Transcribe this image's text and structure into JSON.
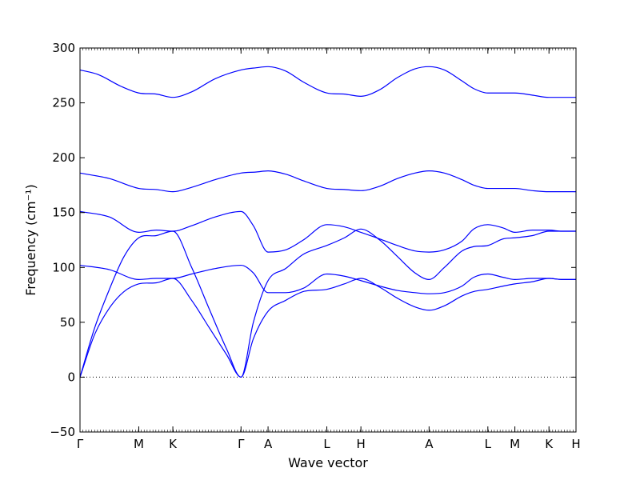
{
  "chart_data": {
    "type": "line",
    "xlabel": "Wave vector",
    "ylabel": "Frequency (cm⁻¹)",
    "ylim": [
      -50,
      300
    ],
    "yticks": [
      -50,
      0,
      50,
      100,
      150,
      200,
      250,
      300
    ],
    "grid": false,
    "line_color": "#0000ff",
    "zero_line": {
      "y": 0,
      "style": "dotted"
    },
    "high_symmetry_points": [
      {
        "label": "Γ",
        "x": 0
      },
      {
        "label": "M",
        "x": 1.0
      },
      {
        "label": "K",
        "x": 1.58
      },
      {
        "label": "Γ",
        "x": 2.74
      },
      {
        "label": "A",
        "x": 3.2
      },
      {
        "label": "L",
        "x": 4.2
      },
      {
        "label": "H",
        "x": 4.78
      },
      {
        "label": "A",
        "x": 5.94
      },
      {
        "label": "L",
        "x": 6.94
      },
      {
        "label": "M",
        "x": 7.4
      },
      {
        "label": "K",
        "x": 7.98
      },
      {
        "label": "H",
        "x": 8.44
      }
    ],
    "series": [
      {
        "points": [
          [
            0,
            0
          ],
          [
            0.25,
            39
          ],
          [
            0.5,
            63
          ],
          [
            0.75,
            78
          ],
          [
            1.0,
            85
          ],
          [
            1.3,
            86
          ],
          [
            1.58,
            90
          ],
          [
            1.9,
            70
          ],
          [
            2.2,
            45
          ],
          [
            2.5,
            20
          ],
          [
            2.74,
            0
          ],
          [
            2.95,
            35
          ],
          [
            3.2,
            60
          ],
          [
            3.5,
            70
          ],
          [
            3.8,
            78
          ],
          [
            4.2,
            80
          ],
          [
            4.5,
            85
          ],
          [
            4.78,
            90
          ],
          [
            5.1,
            82
          ],
          [
            5.4,
            72
          ],
          [
            5.7,
            64
          ],
          [
            5.94,
            61
          ],
          [
            6.2,
            65
          ],
          [
            6.5,
            74
          ],
          [
            6.7,
            78
          ],
          [
            6.94,
            80
          ],
          [
            7.2,
            83
          ],
          [
            7.4,
            85
          ],
          [
            7.7,
            87
          ],
          [
            7.98,
            90
          ],
          [
            8.2,
            89
          ],
          [
            8.44,
            89
          ]
        ]
      },
      {
        "points": [
          [
            0,
            0
          ],
          [
            0.25,
            45
          ],
          [
            0.5,
            80
          ],
          [
            0.75,
            110
          ],
          [
            1.0,
            127
          ],
          [
            1.3,
            129
          ],
          [
            1.58,
            133
          ],
          [
            1.9,
            100
          ],
          [
            2.2,
            62
          ],
          [
            2.5,
            25
          ],
          [
            2.74,
            0
          ],
          [
            2.95,
            50
          ],
          [
            3.2,
            88
          ],
          [
            3.5,
            99
          ],
          [
            3.8,
            112
          ],
          [
            4.2,
            120
          ],
          [
            4.5,
            127
          ],
          [
            4.78,
            135
          ],
          [
            5.1,
            125
          ],
          [
            5.4,
            110
          ],
          [
            5.7,
            95
          ],
          [
            5.94,
            89
          ],
          [
            6.2,
            100
          ],
          [
            6.5,
            115
          ],
          [
            6.7,
            119
          ],
          [
            6.94,
            120
          ],
          [
            7.2,
            126
          ],
          [
            7.4,
            127
          ],
          [
            7.7,
            129
          ],
          [
            7.98,
            133
          ],
          [
            8.2,
            133
          ],
          [
            8.44,
            133
          ]
        ]
      },
      {
        "points": [
          [
            0,
            102
          ],
          [
            0.5,
            98
          ],
          [
            1.0,
            89
          ],
          [
            1.3,
            90
          ],
          [
            1.58,
            90
          ],
          [
            1.9,
            94
          ],
          [
            2.3,
            99
          ],
          [
            2.74,
            102
          ],
          [
            2.95,
            95
          ],
          [
            3.2,
            77
          ],
          [
            3.5,
            77
          ],
          [
            3.8,
            81
          ],
          [
            4.2,
            94
          ],
          [
            4.5,
            92
          ],
          [
            4.78,
            88
          ],
          [
            5.1,
            83
          ],
          [
            5.4,
            79
          ],
          [
            5.7,
            77
          ],
          [
            5.94,
            76
          ],
          [
            6.2,
            77
          ],
          [
            6.5,
            83
          ],
          [
            6.7,
            91
          ],
          [
            6.94,
            94
          ],
          [
            7.2,
            91
          ],
          [
            7.4,
            89
          ],
          [
            7.7,
            90
          ],
          [
            7.98,
            90
          ],
          [
            8.2,
            89
          ],
          [
            8.44,
            89
          ]
        ]
      },
      {
        "points": [
          [
            0,
            151
          ],
          [
            0.5,
            146
          ],
          [
            1.0,
            132
          ],
          [
            1.3,
            134
          ],
          [
            1.58,
            133
          ],
          [
            1.9,
            138
          ],
          [
            2.3,
            146
          ],
          [
            2.74,
            151
          ],
          [
            2.95,
            138
          ],
          [
            3.2,
            114
          ],
          [
            3.5,
            116
          ],
          [
            3.8,
            125
          ],
          [
            4.2,
            139
          ],
          [
            4.5,
            137
          ],
          [
            4.78,
            132
          ],
          [
            5.1,
            126
          ],
          [
            5.4,
            120
          ],
          [
            5.7,
            115
          ],
          [
            5.94,
            114
          ],
          [
            6.2,
            116
          ],
          [
            6.5,
            124
          ],
          [
            6.7,
            135
          ],
          [
            6.94,
            139
          ],
          [
            7.2,
            136
          ],
          [
            7.4,
            132
          ],
          [
            7.7,
            134
          ],
          [
            7.98,
            134
          ],
          [
            8.2,
            133
          ],
          [
            8.44,
            133
          ]
        ]
      },
      {
        "points": [
          [
            0,
            186
          ],
          [
            0.5,
            181
          ],
          [
            1.0,
            172
          ],
          [
            1.3,
            171
          ],
          [
            1.58,
            169
          ],
          [
            1.9,
            173
          ],
          [
            2.3,
            180
          ],
          [
            2.74,
            186
          ],
          [
            3.0,
            187
          ],
          [
            3.2,
            188
          ],
          [
            3.5,
            185
          ],
          [
            3.8,
            179
          ],
          [
            4.2,
            172
          ],
          [
            4.5,
            171
          ],
          [
            4.78,
            170
          ],
          [
            5.1,
            174
          ],
          [
            5.4,
            181
          ],
          [
            5.7,
            186
          ],
          [
            5.94,
            188
          ],
          [
            6.2,
            186
          ],
          [
            6.5,
            180
          ],
          [
            6.7,
            175
          ],
          [
            6.94,
            172
          ],
          [
            7.2,
            172
          ],
          [
            7.4,
            172
          ],
          [
            7.7,
            170
          ],
          [
            7.98,
            169
          ],
          [
            8.2,
            169
          ],
          [
            8.44,
            169
          ]
        ]
      },
      {
        "points": [
          [
            0,
            280
          ],
          [
            0.3,
            276
          ],
          [
            0.7,
            265
          ],
          [
            1.0,
            259
          ],
          [
            1.3,
            258
          ],
          [
            1.58,
            255
          ],
          [
            1.9,
            260
          ],
          [
            2.3,
            272
          ],
          [
            2.74,
            280
          ],
          [
            3.0,
            282
          ],
          [
            3.2,
            283
          ],
          [
            3.5,
            279
          ],
          [
            3.8,
            269
          ],
          [
            4.2,
            259
          ],
          [
            4.5,
            258
          ],
          [
            4.78,
            256
          ],
          [
            5.1,
            262
          ],
          [
            5.4,
            273
          ],
          [
            5.7,
            281
          ],
          [
            5.94,
            283
          ],
          [
            6.2,
            280
          ],
          [
            6.5,
            270
          ],
          [
            6.7,
            263
          ],
          [
            6.94,
            259
          ],
          [
            7.2,
            259
          ],
          [
            7.4,
            259
          ],
          [
            7.7,
            257
          ],
          [
            7.98,
            255
          ],
          [
            8.2,
            255
          ],
          [
            8.44,
            255
          ]
        ]
      }
    ]
  }
}
